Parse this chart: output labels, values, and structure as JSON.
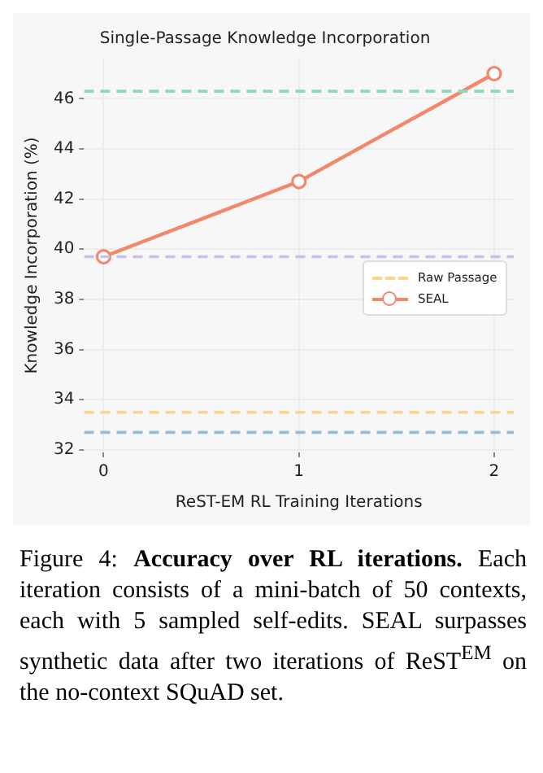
{
  "chart_data": {
    "type": "line",
    "title": "Single-Passage Knowledge Incorporation",
    "xlabel": "ReST-EM RL Training Iterations",
    "ylabel": "Knowledge Incorporation (%)",
    "x": [
      0,
      1,
      2
    ],
    "xlim": [
      -0.1,
      2.1
    ],
    "xticks": [
      0,
      1,
      2
    ],
    "ylim": [
      31.9,
      47.6
    ],
    "yticks": [
      32,
      34,
      36,
      38,
      40,
      42,
      44,
      46
    ],
    "series": [
      {
        "name": "SEAL",
        "color": "#f4866a",
        "values": [
          39.7,
          42.7,
          47.0
        ]
      }
    ],
    "ref_lines": [
      {
        "axis": "y",
        "value": 32.7,
        "label": null,
        "color": "#8fbfe0",
        "line_style": "dashed"
      },
      {
        "axis": "y",
        "value": 33.5,
        "label": "Raw Passage",
        "color": "#fdd38a",
        "line_style": "dashed"
      },
      {
        "axis": "y",
        "value": 39.7,
        "label": null,
        "color": "#c5c0ee",
        "line_style": "dashed"
      },
      {
        "axis": "y",
        "value": 46.3,
        "label": null,
        "color": "#8ad8c0",
        "line_style": "dashed"
      }
    ],
    "grid": true,
    "legend": "right",
    "marker": "circle",
    "line_style": "solid",
    "annotations": [
      "Figure 4:",
      "Accuracy over RL iterations.",
      "Each iteration consists of a mini-batch of 50 contexts, each with 5 sampled self-edits. SEAL surpasses synthetic data after two iterations of ReST$^{EM}$ on the no-context SQuAD set."
    ]
  }
}
